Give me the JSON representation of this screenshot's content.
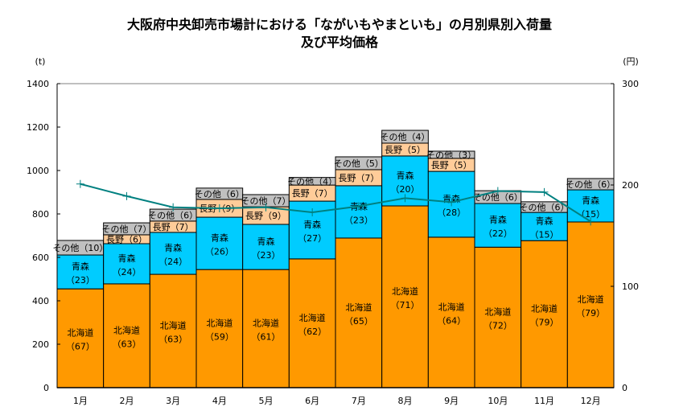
{
  "chart_data": {
    "type": "bar",
    "stacked": true,
    "title": "大阪府中央卸売市場計における「ながいもやまといも」の月別県別入荷量",
    "subtitle": "及び平均価格",
    "xlabel": "",
    "categories": [
      "1月",
      "2月",
      "3月",
      "4月",
      "5月",
      "6月",
      "7月",
      "8月",
      "9月",
      "10月",
      "11月",
      "12月"
    ],
    "y_axis_left": {
      "label": "(t)",
      "range": [
        0,
        1400
      ],
      "ticks": [
        0,
        200,
        400,
        600,
        800,
        1000,
        1200,
        1400
      ],
      "tick_labels": [
        "0",
        "200",
        "400",
        "600",
        "800",
        "1000",
        "1200",
        "1400"
      ]
    },
    "y_axis_right": {
      "label": "(円)",
      "range": [
        0,
        300
      ],
      "ticks": [
        0,
        100,
        200,
        300
      ],
      "tick_labels": [
        "0",
        "100",
        "200",
        "300"
      ]
    },
    "grid": false,
    "legend": "none",
    "series": [
      {
        "name": "北海道",
        "type": "bar",
        "axis": "left",
        "color": "#FF9900",
        "values": [
          455,
          478,
          522,
          544,
          544,
          593,
          689,
          837,
          693,
          647,
          677,
          763
        ],
        "share_labels": [
          "（67）",
          "（63）",
          "（63）",
          "（59）",
          "（61）",
          "（62）",
          "（65）",
          "（71）",
          "（64）",
          "（72）",
          "（79）",
          "（79）"
        ]
      },
      {
        "name": "青森",
        "type": "bar",
        "axis": "left",
        "color": "#00CCFF",
        "values": [
          156,
          185,
          193,
          241,
          208,
          266,
          241,
          230,
          303,
          201,
          130,
          148
        ],
        "share_labels": [
          "（23）",
          "（24）",
          "（24）",
          "（26）",
          "（23）",
          "（27）",
          "（23）",
          "（20）",
          "（28）",
          "（22）",
          "（15）",
          "（15）"
        ]
      },
      {
        "name": "長野",
        "type": "bar",
        "axis": "left",
        "color": "#FFCC99",
        "values": [
          null,
          41,
          52,
          82,
          81,
          74,
          74,
          59,
          60,
          null,
          null,
          null
        ],
        "share_labels": [
          null,
          "（6）",
          "（7）",
          "（9）",
          "（9）",
          "（7）",
          "（7）",
          "（5）",
          "（5）",
          null,
          null,
          null
        ]
      },
      {
        "name": "その他",
        "type": "bar",
        "axis": "left",
        "color": "#C0C0C0",
        "values": [
          67,
          55,
          55,
          52,
          56,
          35,
          59,
          59,
          33,
          59,
          49,
          52
        ],
        "share_labels": [
          "（10）",
          "（7）",
          "（6）",
          "（6）",
          "（7）",
          "（4）",
          "（5）",
          "（4）",
          "（3）",
          "（6）",
          "（6）",
          "（6）"
        ]
      },
      {
        "name": "平均価格",
        "type": "line",
        "axis": "right",
        "color": "#008080",
        "values": [
          201,
          189,
          178,
          177,
          178,
          173,
          179,
          187,
          183,
          194,
          193,
          164
        ]
      }
    ]
  }
}
